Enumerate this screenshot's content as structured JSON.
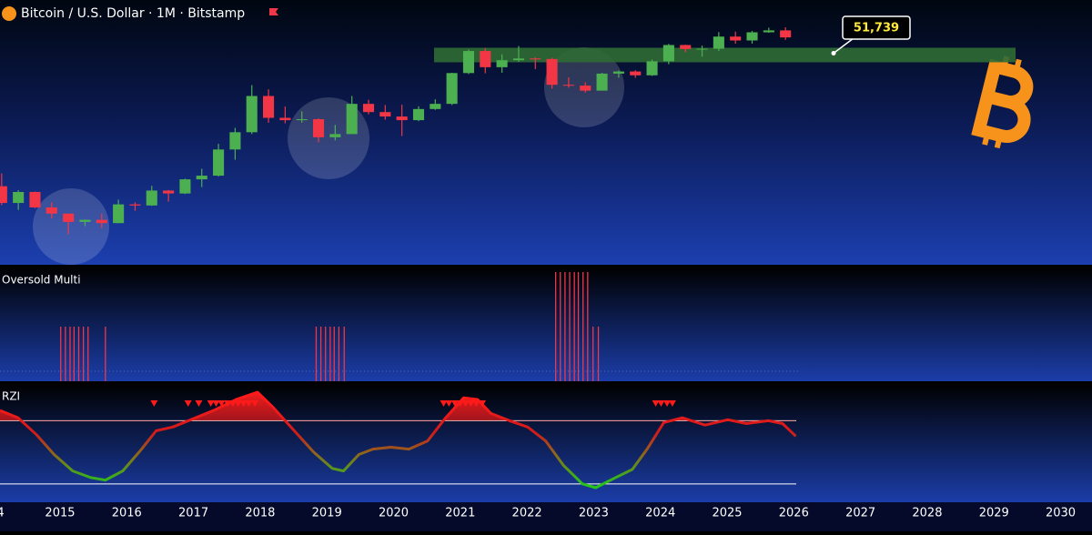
{
  "chart_data": [
    {
      "type": "candlestick",
      "title": "Bitcoin / U.S. Dollar · 1M · Bitstamp",
      "log_scale": true,
      "xlim": [
        2014.1,
        2030.47
      ],
      "ylim": [
        62,
        302000
      ],
      "up_color": "#4caf50",
      "down_color": "#f23645",
      "x": [
        2014.0,
        2014.25,
        2014.5,
        2014.75,
        2015.0,
        2015.25,
        2015.5,
        2015.75,
        2016.0,
        2016.25,
        2016.5,
        2016.75,
        2017.0,
        2017.25,
        2017.5,
        2017.75,
        2018.0,
        2018.25,
        2018.5,
        2018.75,
        2019.0,
        2019.25,
        2019.5,
        2019.75,
        2020.0,
        2020.25,
        2020.5,
        2020.75,
        2021.0,
        2021.25,
        2021.5,
        2021.75,
        2022.0,
        2022.25,
        2022.5,
        2022.75,
        2023.0,
        2023.25,
        2023.5,
        2023.75,
        2024.0,
        2024.25,
        2024.5,
        2024.75,
        2025.0,
        2025.25,
        2025.5,
        2025.75
      ],
      "open": [
        770,
        450,
        640,
        390,
        320,
        245,
        262,
        236,
        430,
        415,
        670,
        610,
        960,
        1080,
        2500,
        4350,
        13900,
        6900,
        6400,
        6600,
        3700,
        4100,
        10800,
        8300,
        7200,
        6400,
        9150,
        10800,
        29000,
        58800,
        35000,
        43800,
        46300,
        45500,
        19900,
        19400,
        16500,
        28500,
        30500,
        27000,
        42300,
        71300,
        62700,
        63300,
        93400,
        82500,
        107200,
        114000
      ],
      "high": [
        1160,
        680,
        650,
        460,
        320,
        265,
        320,
        500,
        460,
        780,
        680,
        980,
        1350,
        3000,
        5000,
        19700,
        17200,
        9900,
        8500,
        6800,
        5500,
        13900,
        12300,
        10400,
        10500,
        10000,
        12500,
        29300,
        61800,
        64800,
        52900,
        69000,
        48200,
        47500,
        25200,
        21500,
        29200,
        31400,
        31800,
        44700,
        73800,
        72000,
        70000,
        108000,
        109400,
        112000,
        124500,
        126000
      ],
      "low": [
        420,
        360,
        380,
        275,
        165,
        215,
        200,
        235,
        350,
        410,
        470,
        600,
        750,
        1050,
        1800,
        4100,
        5900,
        5800,
        5900,
        3150,
        3350,
        4100,
        7700,
        6500,
        3850,
        6200,
        8900,
        10400,
        28100,
        28800,
        29300,
        41500,
        32900,
        17600,
        18200,
        15500,
        16500,
        25000,
        24900,
        26500,
        38500,
        56500,
        49000,
        58900,
        74500,
        74400,
        105300,
        84000
      ],
      "close": [
        450,
        640,
        390,
        320,
        245,
        262,
        236,
        430,
        415,
        670,
        610,
        960,
        1080,
        2500,
        4350,
        13900,
        6900,
        6400,
        6600,
        3700,
        4100,
        10800,
        8300,
        7200,
        6400,
        9150,
        10800,
        29000,
        58800,
        35000,
        43800,
        46300,
        45500,
        19900,
        19400,
        16500,
        28500,
        30500,
        27000,
        42300,
        71300,
        62700,
        63300,
        93400,
        82500,
        107200,
        114000,
        91000
      ],
      "level": {
        "value": 51739,
        "label": "51,739",
        "color": "#2f6b35"
      }
    },
    {
      "type": "bar",
      "title": "Oversold Multi",
      "color": "#f23645",
      "xlim": [
        2014.1,
        2030.47
      ],
      "ylim": [
        0,
        2.1
      ],
      "x": [
        2015.01,
        2015.08,
        2015.15,
        2015.21,
        2015.28,
        2015.35,
        2015.42,
        2015.68,
        2018.84,
        2018.91,
        2018.98,
        2019.05,
        2019.11,
        2019.18,
        2019.26,
        2022.43,
        2022.5,
        2022.57,
        2022.64,
        2022.71,
        2022.77,
        2022.84,
        2022.91,
        2022.99,
        2023.07
      ],
      "values": [
        1,
        1,
        1,
        1,
        1,
        1,
        1,
        1,
        1,
        1,
        1,
        1,
        1,
        1,
        1,
        2,
        2,
        2,
        2,
        2,
        2,
        2,
        2,
        1,
        1
      ]
    },
    {
      "type": "line",
      "title": "RZI",
      "xlim": [
        2014.1,
        2030.47
      ],
      "ylim": [
        -1.58,
        2.19
      ],
      "levels": [
        1,
        -1
      ],
      "x": [
        2014.1,
        2014.37,
        2014.64,
        2014.91,
        2015.19,
        2015.46,
        2015.68,
        2015.94,
        2016.21,
        2016.44,
        2016.69,
        2016.96,
        2017.3,
        2017.64,
        2017.96,
        2018.19,
        2018.46,
        2018.8,
        2019.08,
        2019.25,
        2019.48,
        2019.69,
        2019.96,
        2020.23,
        2020.51,
        2020.78,
        2021.05,
        2021.26,
        2021.46,
        2021.74,
        2022.01,
        2022.28,
        2022.55,
        2022.83,
        2023.03,
        2023.3,
        2023.58,
        2023.81,
        2024.05,
        2024.33,
        2024.67,
        2025.01,
        2025.29,
        2025.62,
        2025.83,
        2026.03
      ],
      "values": [
        1.32,
        1.09,
        0.57,
        -0.07,
        -0.59,
        -0.8,
        -0.88,
        -0.59,
        0.07,
        0.68,
        0.8,
        1.03,
        1.32,
        1.67,
        1.9,
        1.43,
        0.8,
        0.01,
        -0.51,
        -0.59,
        -0.07,
        0.1,
        0.16,
        0.1,
        0.36,
        1.09,
        1.72,
        1.67,
        1.23,
        1.0,
        0.8,
        0.36,
        -0.42,
        -1.0,
        -1.12,
        -0.83,
        -0.54,
        0.13,
        0.94,
        1.09,
        0.86,
        1.03,
        0.91,
        1.0,
        0.91,
        0.51
      ],
      "sell_signals": [
        2016.41,
        2016.92,
        2017.08,
        2017.26,
        2017.34,
        2017.42,
        2017.51,
        2017.59,
        2017.67,
        2017.75,
        2017.83,
        2017.92,
        2020.75,
        2020.83,
        2020.92,
        2021.0,
        2021.08,
        2021.16,
        2021.24,
        2021.33,
        2023.93,
        2024.01,
        2024.1,
        2024.18
      ],
      "xticks": [
        {
          "value": 2014,
          "label": "4"
        },
        2015,
        2016,
        2017,
        2018,
        2019,
        2020,
        2021,
        2022,
        2023,
        2024,
        2025,
        2026,
        2027,
        2028,
        2029,
        2030
      ]
    }
  ]
}
